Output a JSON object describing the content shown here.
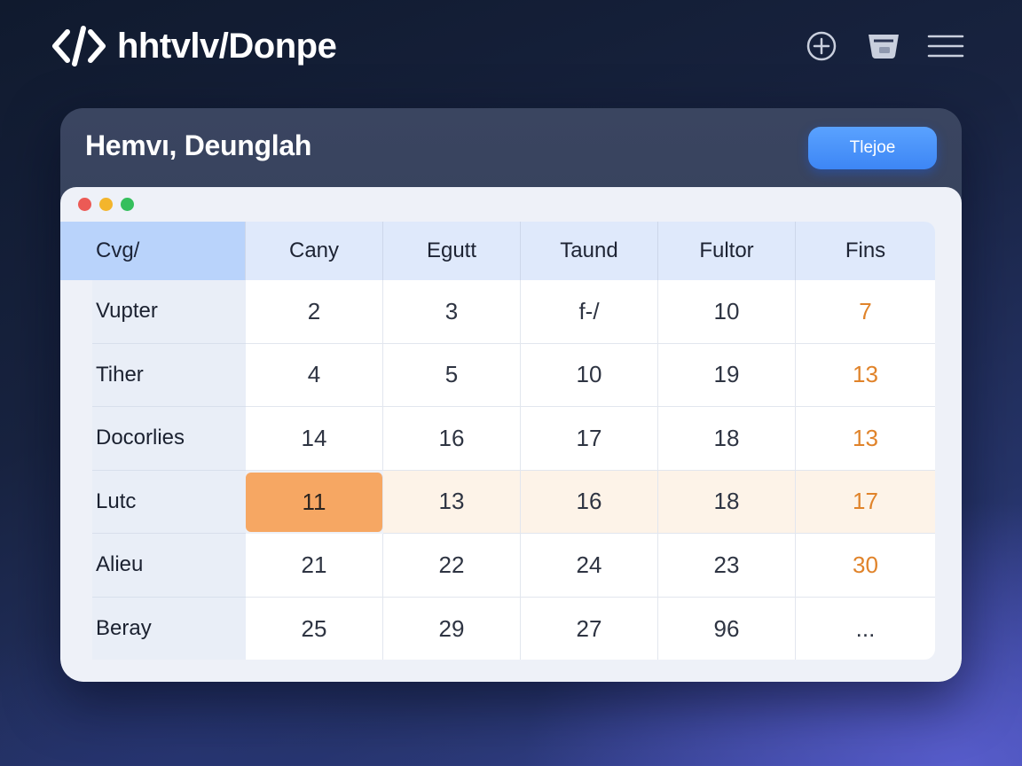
{
  "app": {
    "brand": "hhtvlv/Donpe"
  },
  "colors": {
    "accent": "#e0832a",
    "primary_button": "#3d86f5",
    "selected_cell": "#f6a763",
    "header_first": "#b9d3fb"
  },
  "top_actions": [
    {
      "icon": "plus-circle-icon"
    },
    {
      "icon": "cart-icon"
    },
    {
      "icon": "hamburger-menu-icon"
    }
  ],
  "card": {
    "title": "Hemvı, Deunglah",
    "action_label": "Tlejoe"
  },
  "table": {
    "columns": [
      "Cvg/",
      "Cany",
      "Egutt",
      "Taund",
      "Fultor",
      "Fins"
    ],
    "rows": [
      {
        "label": "Vupter",
        "values": [
          "2",
          "3",
          "f-/",
          "10",
          "7"
        ]
      },
      {
        "label": "Tiher",
        "values": [
          "4",
          "5",
          "10",
          "19",
          "13"
        ]
      },
      {
        "label": "Docorlies",
        "values": [
          "14",
          "16",
          "17",
          "18",
          "13"
        ]
      },
      {
        "label": "Lutc",
        "values": [
          "11",
          "13",
          "16",
          "18",
          "17"
        ]
      },
      {
        "label": "Alieu",
        "values": [
          "21",
          "22",
          "24",
          "23",
          "30"
        ]
      },
      {
        "label": "Beray",
        "values": [
          "25",
          "29",
          "27",
          "96",
          "..."
        ]
      }
    ],
    "highlighted_row": 3,
    "selected_cell": {
      "row": 3,
      "col": 0
    }
  }
}
